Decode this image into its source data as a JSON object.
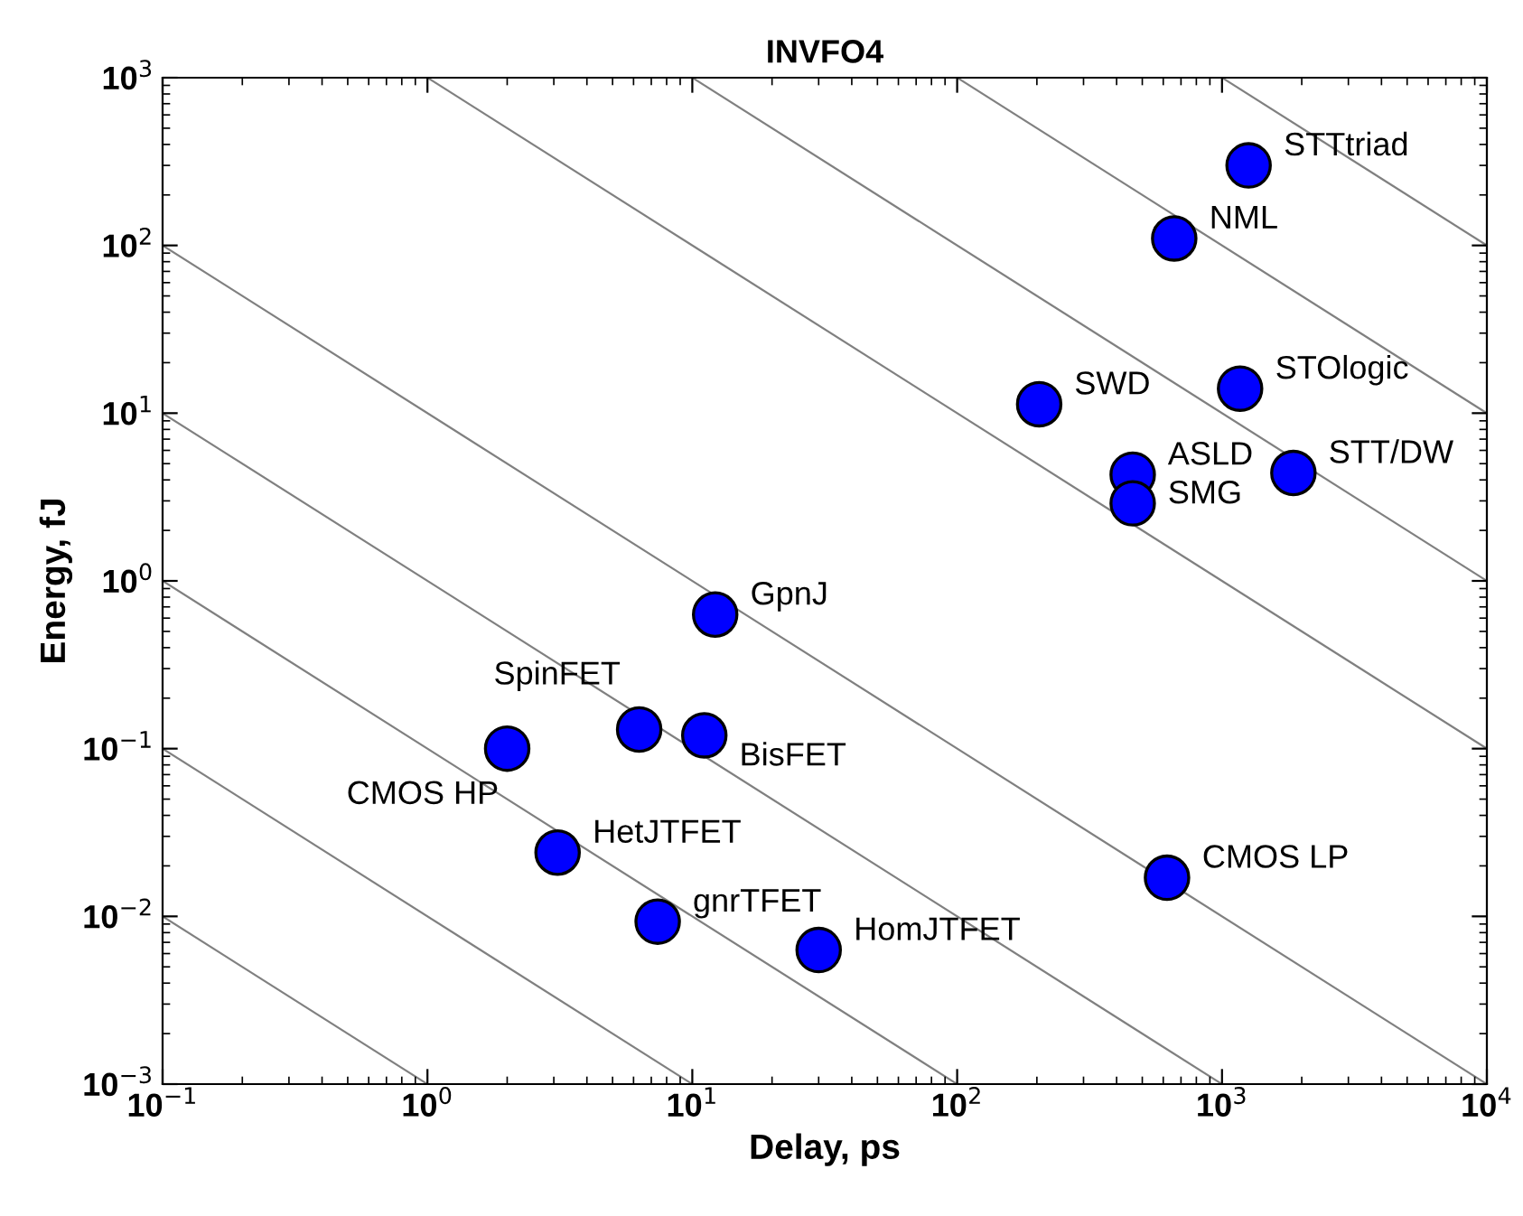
{
  "chart_data": {
    "type": "scatter",
    "title": "INVFO4",
    "xlabel": "Delay, ps",
    "ylabel": "Energy, fJ",
    "log": "xy",
    "xlim": [
      0.1,
      10000
    ],
    "ylim": [
      0.001,
      1000
    ],
    "xticks": [
      {
        "value": 0.1,
        "label": "10$^{−1}$"
      },
      {
        "value": 1,
        "label": "10$^{0}$"
      },
      {
        "value": 10,
        "label": "10$^{1}$"
      },
      {
        "value": 100,
        "label": "10$^{2}$"
      },
      {
        "value": 1000,
        "label": "10$^{3}$"
      },
      {
        "value": 10000,
        "label": "10$^{4}$"
      }
    ],
    "yticks": [
      {
        "value": 0.001,
        "label": "10$^{−3}$"
      },
      {
        "value": 0.01,
        "label": "10$^{−2}$"
      },
      {
        "value": 0.1,
        "label": "10$^{−1}$"
      },
      {
        "value": 1,
        "label": "10$^{0}$"
      },
      {
        "value": 10,
        "label": "10$^{1}$"
      },
      {
        "value": 100,
        "label": "10$^{2}$"
      },
      {
        "value": 1000,
        "label": "10$^{3}$"
      }
    ],
    "grid": false,
    "legend": false,
    "series": [
      {
        "type": "line",
        "color": "#808080",
        "x": [
          0.1,
          1
        ],
        "values": [
          0.01,
          0.001
        ]
      },
      {
        "type": "line",
        "color": "#808080",
        "x": [
          0.1,
          10
        ],
        "values": [
          0.1,
          0.001
        ]
      },
      {
        "type": "line",
        "color": "#808080",
        "x": [
          0.1,
          100
        ],
        "values": [
          1,
          0.001
        ]
      },
      {
        "type": "line",
        "color": "#808080",
        "x": [
          0.1,
          1000
        ],
        "values": [
          10,
          0.001
        ]
      },
      {
        "type": "line",
        "color": "#808080",
        "x": [
          0.1,
          10000
        ],
        "values": [
          100,
          0.001
        ]
      },
      {
        "type": "line",
        "color": "#808080",
        "x": [
          1,
          10000
        ],
        "values": [
          1000,
          0.1
        ]
      },
      {
        "type": "line",
        "color": "#808080",
        "x": [
          10,
          10000
        ],
        "values": [
          1000,
          1
        ]
      },
      {
        "type": "line",
        "color": "#808080",
        "x": [
          100,
          10000
        ],
        "values": [
          1000,
          10
        ]
      },
      {
        "type": "line",
        "color": "#808080",
        "x": [
          1000,
          10000
        ],
        "values": [
          1000,
          100
        ]
      },
      {
        "marker": "circle",
        "color": "#0000ff",
        "x": [
          1260,
          660,
          204,
          1170,
          460,
          460,
          1860,
          12.2,
          6.3,
          11.1,
          2.0,
          3.1,
          7.4,
          30,
          620
        ],
        "values": [
          300,
          110,
          11.3,
          14,
          4.3,
          2.9,
          4.4,
          0.63,
          0.13,
          0.12,
          0.1,
          0.024,
          0.0093,
          0.0063,
          0.017
        ]
      }
    ],
    "annotations": [
      {
        "text": "STTtriad",
        "x": 1260,
        "y": 300
      },
      {
        "text": "NML",
        "x": 660,
        "y": 110
      },
      {
        "text": "SWD",
        "x": 204,
        "y": 11.3
      },
      {
        "text": "STOlogic",
        "x": 1170,
        "y": 14
      },
      {
        "text": "ASLD",
        "x": 460,
        "y": 4.3
      },
      {
        "text": "SMG",
        "x": 460,
        "y": 2.9
      },
      {
        "text": "STT/DW",
        "x": 1860,
        "y": 4.4
      },
      {
        "text": "GpnJ",
        "x": 12.2,
        "y": 0.63
      },
      {
        "text": "SpinFET",
        "x": 6.3,
        "y": 0.13
      },
      {
        "text": "BisFET",
        "x": 11.1,
        "y": 0.12
      },
      {
        "text": "CMOS HP",
        "x": 2.0,
        "y": 0.1
      },
      {
        "text": "HetJTFET",
        "x": 3.1,
        "y": 0.024
      },
      {
        "text": "gnrTFET",
        "x": 7.4,
        "y": 0.0093
      },
      {
        "text": "HomJTFET",
        "x": 30,
        "y": 0.0063
      },
      {
        "text": "CMOS LP",
        "x": 620,
        "y": 0.017
      }
    ]
  }
}
